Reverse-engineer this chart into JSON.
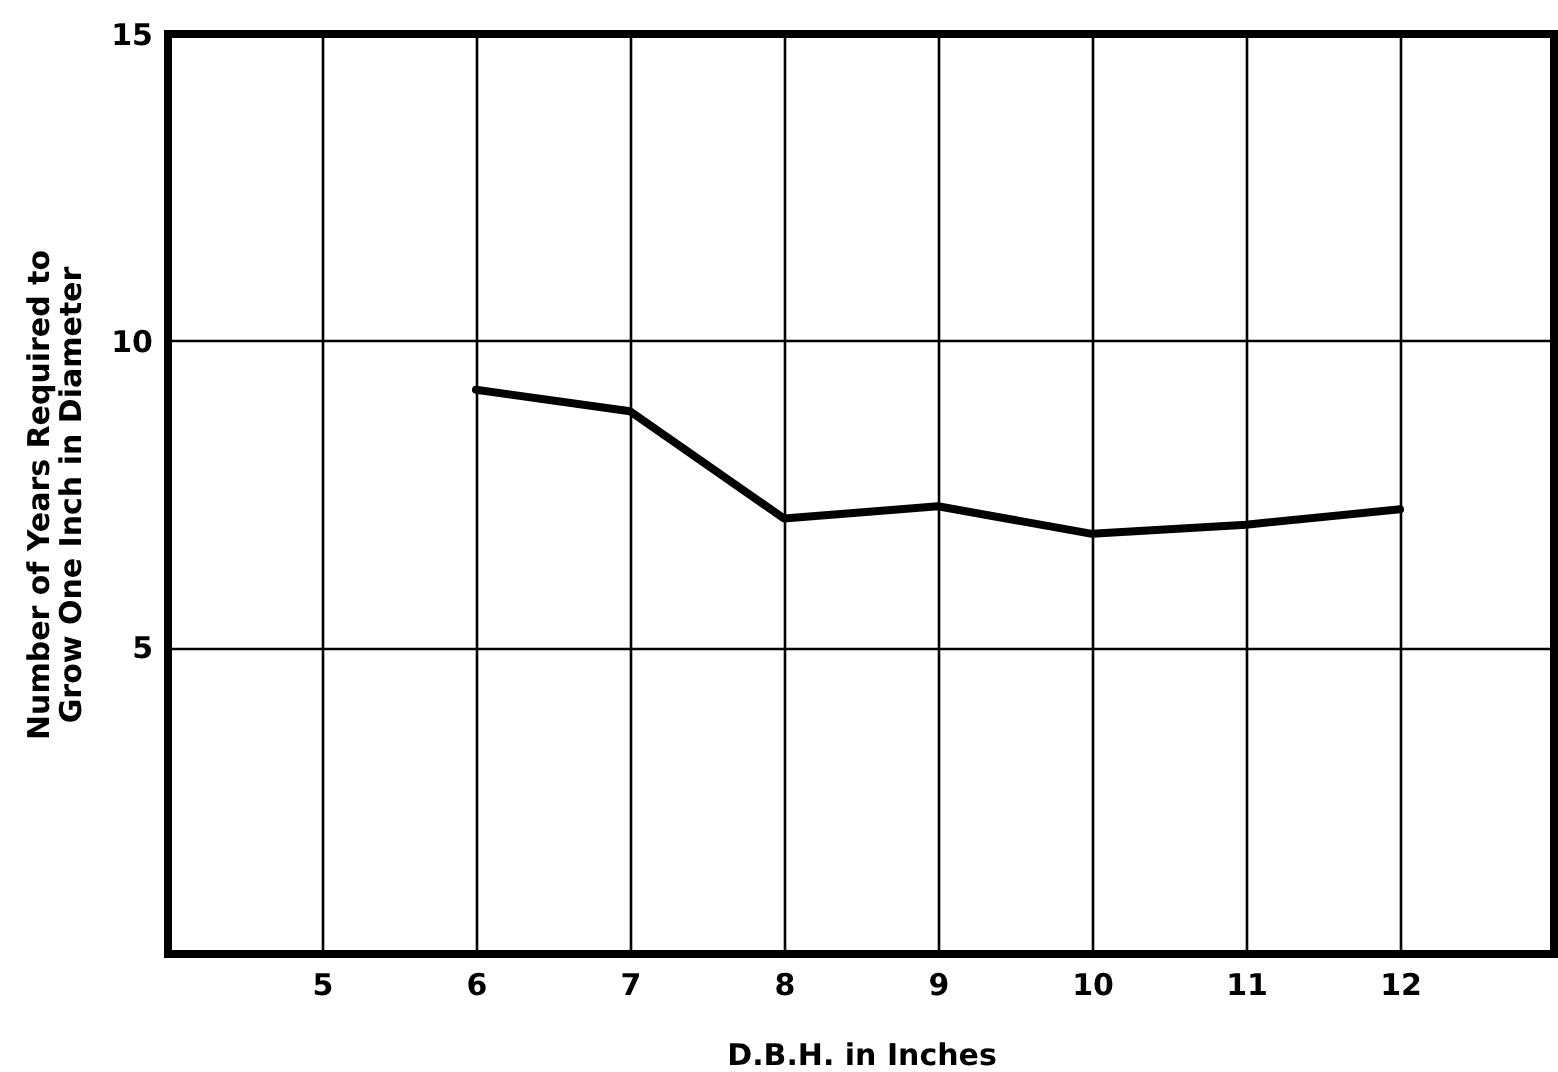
{
  "chart_data": {
    "type": "line",
    "xlabel": "D.B.H. in Inches",
    "ylabel": "Number of Years Required to\nGrow One Inch in Diameter",
    "x": [
      6,
      7,
      8,
      9,
      10,
      11,
      12
    ],
    "series": [
      {
        "color": "#000000",
        "values": [
          9.2,
          8.85,
          7.1,
          7.3,
          6.85,
          7.0,
          7.25
        ]
      }
    ],
    "xlim": [
      4,
      13
    ],
    "xticks": [
      5,
      6,
      7,
      8,
      9,
      10,
      11,
      12
    ],
    "ylim": [
      0,
      15
    ],
    "yticks": [
      5,
      10,
      15
    ],
    "grid": true,
    "marker": "none",
    "line_style": "solid"
  }
}
